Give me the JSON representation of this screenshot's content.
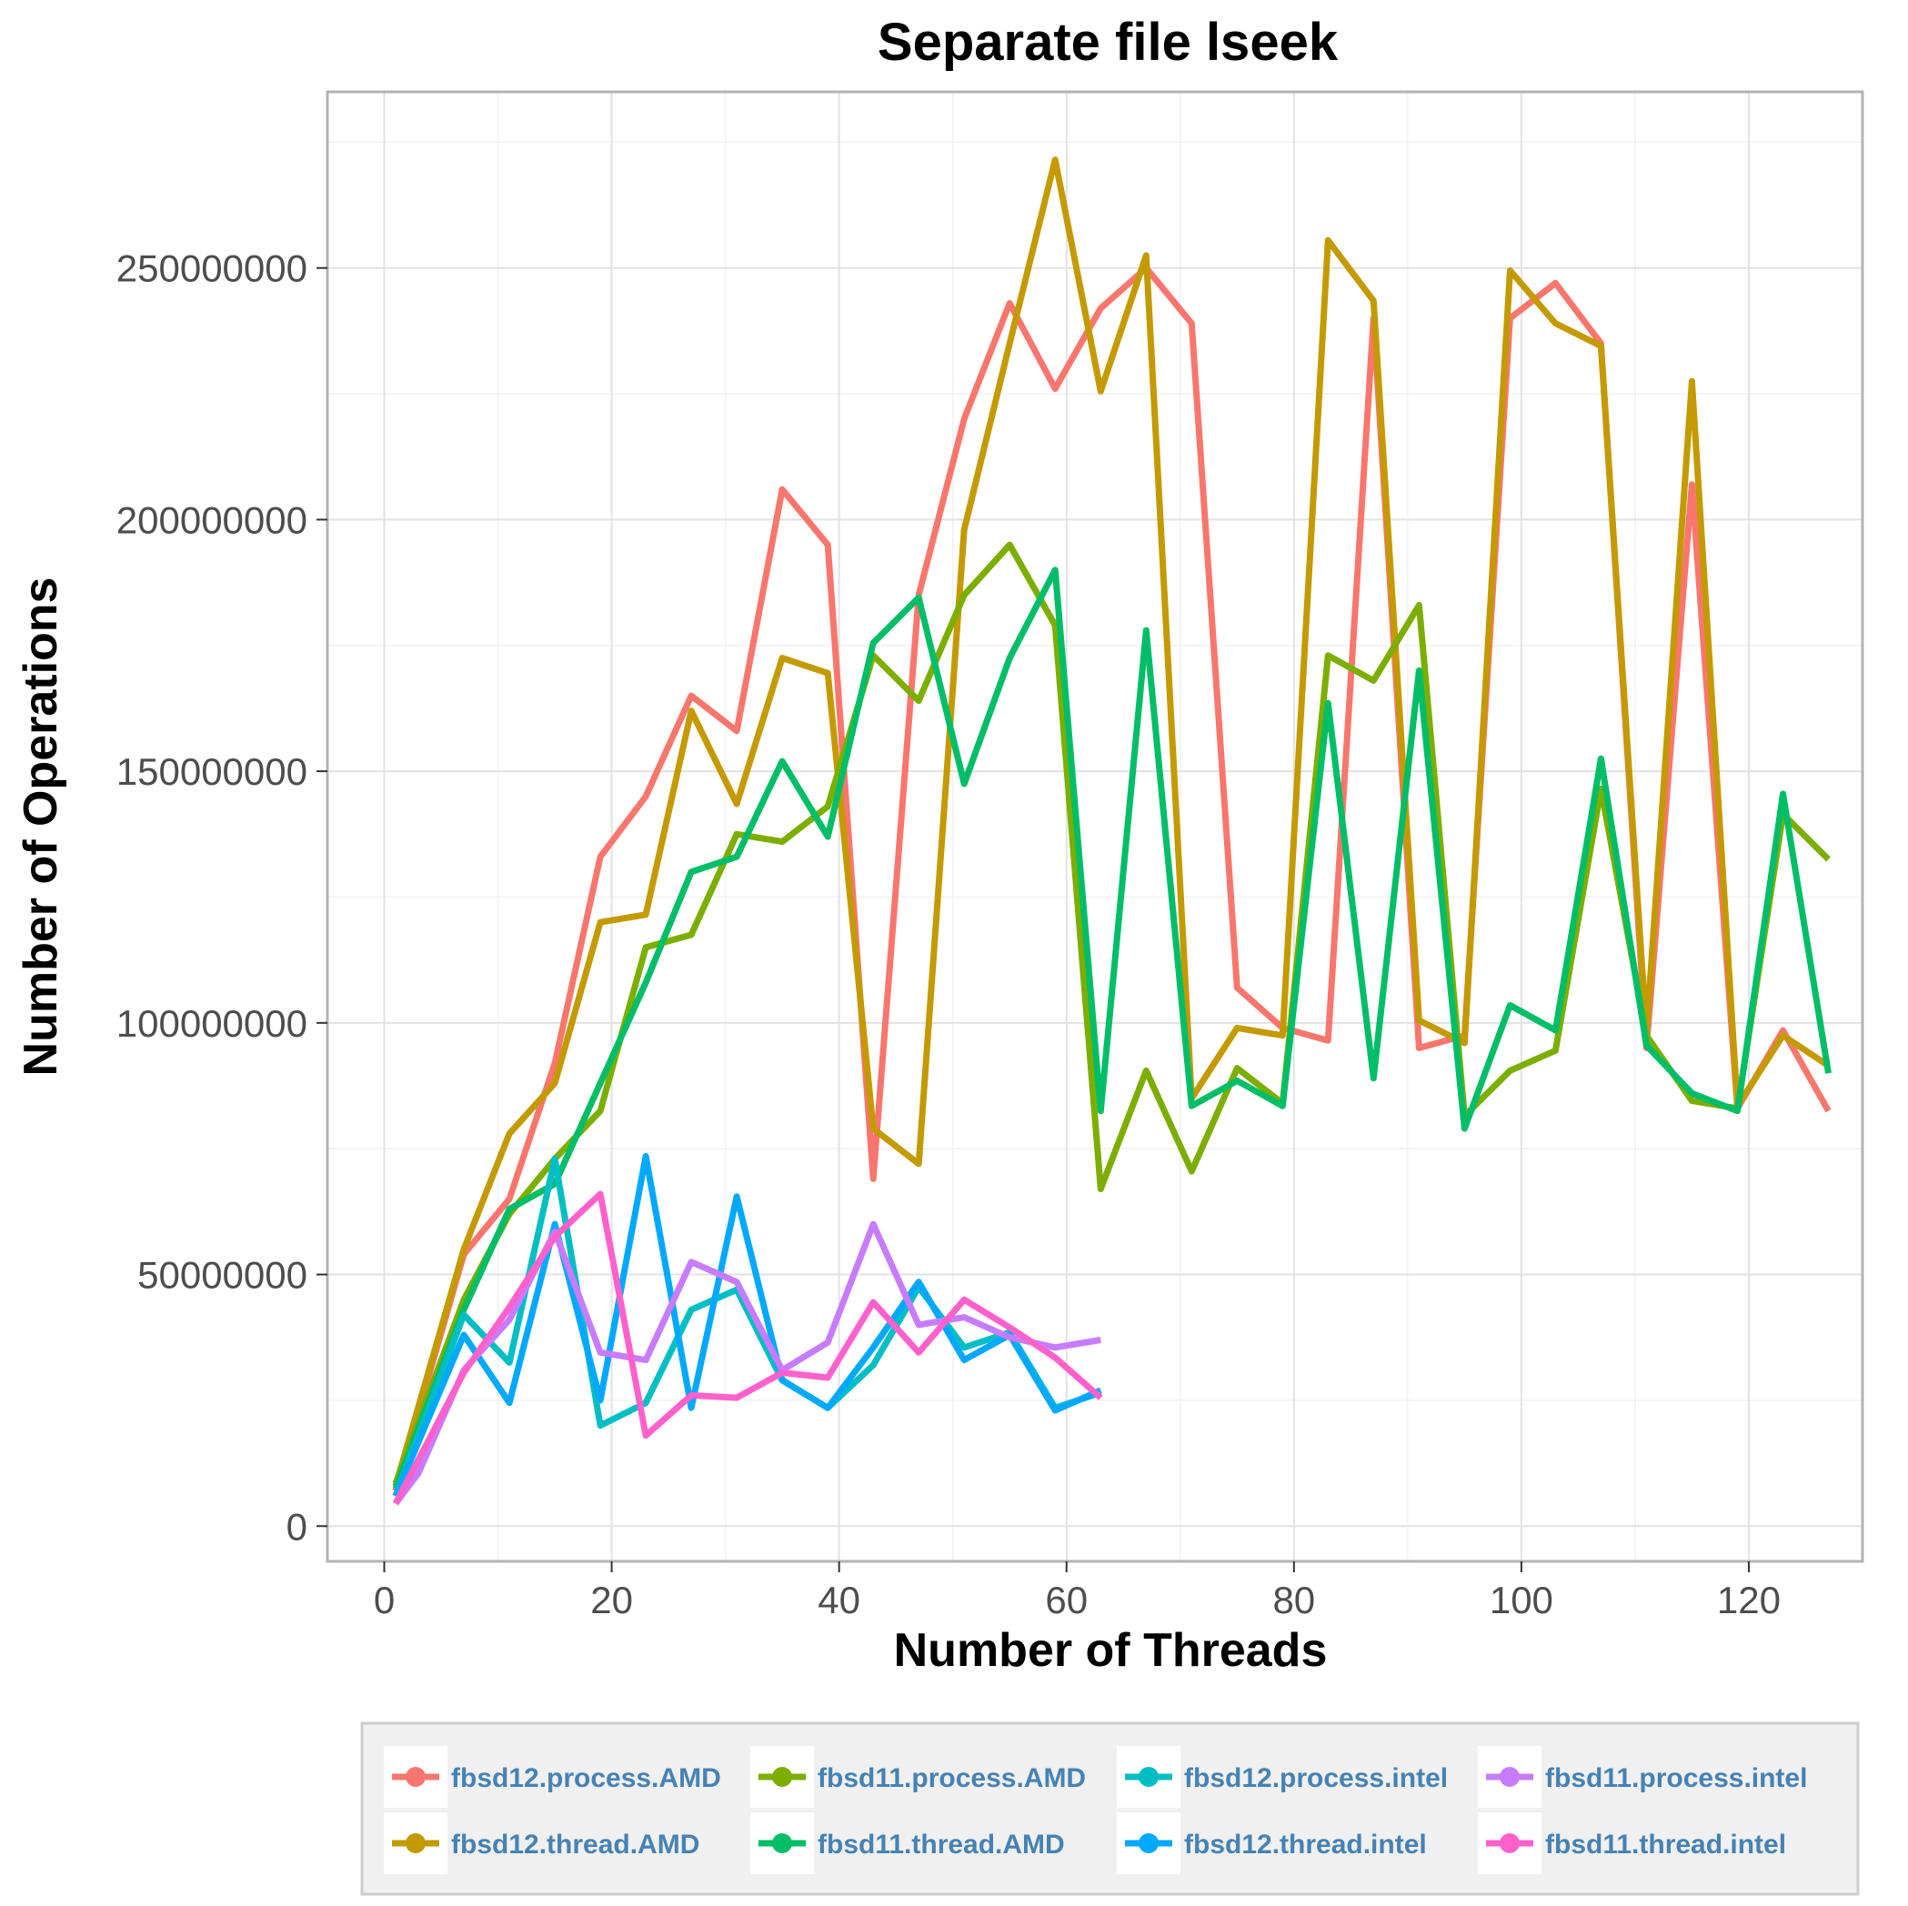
{
  "chart_data": {
    "type": "line",
    "title": "Separate file lseek",
    "xlabel": "Number of Threads",
    "ylabel": "Number of Operations",
    "xlim": [
      -5,
      130
    ],
    "ylim": [
      -7000000,
      285000000
    ],
    "x_ticks": [
      0,
      20,
      40,
      60,
      80,
      100,
      120
    ],
    "x_tick_labels": [
      "0",
      "20",
      "40",
      "60",
      "80",
      "100",
      "120"
    ],
    "y_ticks": [
      0,
      50000000,
      100000000,
      150000000,
      200000000,
      250000000
    ],
    "y_tick_labels": [
      "0",
      "50000000",
      "100000000",
      "150000000",
      "200000000",
      "250000000"
    ],
    "grid": true,
    "legend_position": "bottom",
    "series": [
      {
        "name": "fbsd12.process.AMD",
        "color": "#F8766D",
        "x": [
          1,
          7,
          11,
          15,
          19,
          23,
          27,
          31,
          35,
          39,
          43,
          47,
          51,
          55,
          59,
          63,
          67,
          71,
          75,
          79,
          83,
          87,
          91,
          95,
          99,
          103,
          107,
          111,
          115,
          119,
          123,
          127
        ],
        "y": [
          7000000,
          54000000,
          65000000,
          92000000,
          133000000,
          145000000,
          165000000,
          158000000,
          206000000,
          195000000,
          69000000,
          185000000,
          220000000,
          243000000,
          226000000,
          242000000,
          250000000,
          239000000,
          107000000,
          99000000,
          96500000,
          240000000,
          95000000,
          97500000,
          240000000,
          247000000,
          235000000,
          95000000,
          207000000,
          83000000,
          98500000,
          82500000
        ]
      },
      {
        "name": "fbsd12.thread.AMD",
        "color": "#C49A00",
        "x": [
          1,
          7,
          11,
          15,
          19,
          23,
          27,
          31,
          35,
          39,
          43,
          47,
          51,
          55,
          59,
          63,
          67,
          71,
          75,
          79,
          83,
          87,
          91,
          95,
          99,
          103,
          107,
          111,
          115,
          119,
          123,
          127
        ],
        "y": [
          8000000,
          55000000,
          78000000,
          88000000,
          120000000,
          121500000,
          162000000,
          143500000,
          172500000,
          169500000,
          79000000,
          72000000,
          198000000,
          235000000,
          271500000,
          225500000,
          252500000,
          85000000,
          99000000,
          97500000,
          255500000,
          243500000,
          100500000,
          96000000,
          249500000,
          239000000,
          234500000,
          98000000,
          227500000,
          83500000,
          97500000,
          91500000
        ]
      },
      {
        "name": "fbsd11.process.AMD",
        "color": "#7CAE00",
        "x": [
          1,
          7,
          11,
          15,
          19,
          23,
          27,
          31,
          35,
          39,
          43,
          47,
          51,
          55,
          59,
          63,
          67,
          71,
          75,
          79,
          83,
          87,
          91,
          95,
          99,
          103,
          107,
          111,
          115,
          119,
          123,
          127
        ],
        "y": [
          8500000,
          45000000,
          62000000,
          73000000,
          82500000,
          115000000,
          117500000,
          137500000,
          136000000,
          143000000,
          173000000,
          164000000,
          185000000,
          195000000,
          179000000,
          67000000,
          90500000,
          70500000,
          91000000,
          84000000,
          173000000,
          168000000,
          183000000,
          81500000,
          90500000,
          94500000,
          146500000,
          97500000,
          84500000,
          83000000,
          141500000,
          132500000
        ]
      },
      {
        "name": "fbsd11.thread.AMD",
        "color": "#00BE67",
        "x": [
          1,
          7,
          11,
          15,
          19,
          23,
          27,
          31,
          35,
          39,
          43,
          47,
          51,
          55,
          59,
          63,
          67,
          71,
          75,
          79,
          83,
          87,
          91,
          95,
          99,
          103,
          107,
          111,
          115,
          119,
          123,
          127
        ],
        "y": [
          7500000,
          43000000,
          63000000,
          68000000,
          88000000,
          108000000,
          130000000,
          133000000,
          152000000,
          137000000,
          175500000,
          184500000,
          147500000,
          172500000,
          190000000,
          82500000,
          178000000,
          83500000,
          88500000,
          83500000,
          163500000,
          89000000,
          170000000,
          79000000,
          103500000,
          98500000,
          152500000,
          95500000,
          86000000,
          82500000,
          145500000,
          90000000
        ]
      },
      {
        "name": "fbsd12.process.intel",
        "color": "#00BFC4",
        "x": [
          1,
          7,
          11,
          15,
          19,
          23,
          27,
          31,
          35,
          39,
          43,
          47,
          51,
          55,
          59,
          63
        ],
        "y": [
          6000000,
          42000000,
          32500000,
          73000000,
          20000000,
          24500000,
          43000000,
          47000000,
          29000000,
          23500000,
          32000000,
          47500000,
          35500000,
          38500000,
          23500000,
          26500000
        ]
      },
      {
        "name": "fbsd12.thread.intel",
        "color": "#00A9FF",
        "x": [
          1,
          7,
          11,
          15,
          19,
          23,
          27,
          31,
          35,
          39,
          43,
          47,
          51,
          55,
          59,
          63
        ],
        "y": [
          6000000,
          38000000,
          24500000,
          60000000,
          25000000,
          73500000,
          23500000,
          65500000,
          29000000,
          23500000,
          35500000,
          48500000,
          33000000,
          38000000,
          23000000,
          27000000
        ]
      },
      {
        "name": "fbsd11.process.intel",
        "color": "#C77CFF",
        "x": [
          1,
          3,
          7,
          11,
          15,
          19,
          23,
          27,
          31,
          35,
          39,
          43,
          47,
          51,
          55,
          59,
          63
        ],
        "y": [
          4500000,
          10500000,
          31000000,
          41000000,
          58500000,
          34500000,
          33000000,
          52500000,
          48500000,
          31000000,
          36500000,
          60000000,
          40000000,
          41500000,
          37500000,
          35500000,
          37000000
        ]
      },
      {
        "name": "fbsd11.thread.intel",
        "color": "#FF61CC",
        "x": [
          1,
          7,
          11,
          15,
          19,
          23,
          27,
          31,
          35,
          39,
          43,
          47,
          51,
          55,
          59,
          63
        ],
        "y": [
          4500000,
          30500000,
          43500000,
          57500000,
          66000000,
          18000000,
          26000000,
          25500000,
          30500000,
          29500000,
          44500000,
          34500000,
          45000000,
          39500000,
          33500000,
          25500000
        ]
      }
    ]
  }
}
